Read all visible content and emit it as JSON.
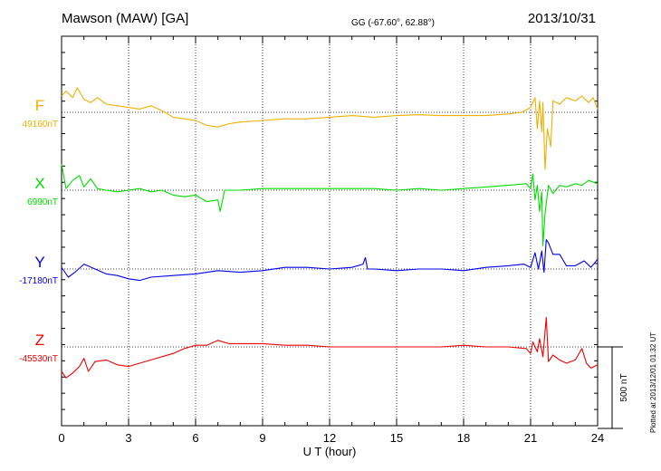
{
  "header": {
    "title": "Mawson (MAW)  [GA]",
    "coords": "GG (-67.60°,  62.88°)",
    "date": "2013/10/31"
  },
  "footer_note": "Plotted at 2013/12/01 01:32 UT",
  "chart_data": {
    "type": "line",
    "xlabel": "U T (hour)",
    "xlim": [
      0,
      24
    ],
    "x_ticks": [
      0,
      3,
      6,
      9,
      12,
      15,
      18,
      21,
      24
    ],
    "scale_bar": {
      "label": "500 nT",
      "value": 500
    },
    "grid": true,
    "series": [
      {
        "name": "F",
        "baseline_label": "49160nT",
        "baseline": 49160,
        "color": "#f0b000",
        "points": [
          [
            0,
            49260
          ],
          [
            0.2,
            49290
          ],
          [
            0.5,
            49250
          ],
          [
            0.7,
            49310
          ],
          [
            1,
            49240
          ],
          [
            1.3,
            49220
          ],
          [
            1.6,
            49250
          ],
          [
            2,
            49210
          ],
          [
            2.5,
            49200
          ],
          [
            3,
            49190
          ],
          [
            3.5,
            49180
          ],
          [
            4,
            49200
          ],
          [
            4.5,
            49170
          ],
          [
            5,
            49130
          ],
          [
            5.5,
            49120
          ],
          [
            6,
            49110
          ],
          [
            6.5,
            49080
          ],
          [
            7,
            49070
          ],
          [
            7.5,
            49090
          ],
          [
            8,
            49100
          ],
          [
            9,
            49110
          ],
          [
            10,
            49120
          ],
          [
            11,
            49120
          ],
          [
            12,
            49130
          ],
          [
            13,
            49140
          ],
          [
            14,
            49130
          ],
          [
            15,
            49140
          ],
          [
            16,
            49145
          ],
          [
            17,
            49140
          ],
          [
            18,
            49140
          ],
          [
            19,
            49140
          ],
          [
            20,
            49150
          ],
          [
            20.6,
            49160
          ],
          [
            21,
            49190
          ],
          [
            21.2,
            49250
          ],
          [
            21.3,
            49060
          ],
          [
            21.4,
            49230
          ],
          [
            21.5,
            49040
          ],
          [
            21.55,
            49220
          ],
          [
            21.65,
            48810
          ],
          [
            21.75,
            49060
          ],
          [
            21.9,
            48950
          ],
          [
            22,
            49230
          ],
          [
            22.3,
            49210
          ],
          [
            22.6,
            49250
          ],
          [
            23,
            49230
          ],
          [
            23.3,
            49260
          ],
          [
            23.6,
            49220
          ],
          [
            23.8,
            49250
          ],
          [
            24,
            49180
          ]
        ]
      },
      {
        "name": "X",
        "baseline_label": "6990nT",
        "baseline": 6990,
        "color": "#00dd00",
        "points": [
          [
            0,
            7150
          ],
          [
            0.2,
            7000
          ],
          [
            0.5,
            7050
          ],
          [
            0.8,
            7080
          ],
          [
            1,
            7010
          ],
          [
            1.3,
            7060
          ],
          [
            1.6,
            7000
          ],
          [
            2,
            6990
          ],
          [
            2.5,
            6980
          ],
          [
            3,
            6990
          ],
          [
            3.5,
            7000
          ],
          [
            4,
            6980
          ],
          [
            4.5,
            6990
          ],
          [
            5,
            6960
          ],
          [
            5.5,
            6950
          ],
          [
            6,
            6960
          ],
          [
            6.5,
            6920
          ],
          [
            7,
            6930
          ],
          [
            7.1,
            6860
          ],
          [
            7.3,
            6990
          ],
          [
            8,
            6990
          ],
          [
            9,
            7000
          ],
          [
            10,
            7000
          ],
          [
            11,
            7000
          ],
          [
            12,
            7000
          ],
          [
            13,
            7000
          ],
          [
            14,
            7000
          ],
          [
            15,
            6990
          ],
          [
            16,
            7000
          ],
          [
            17,
            6990
          ],
          [
            18,
            7000
          ],
          [
            19,
            7010
          ],
          [
            20,
            7020
          ],
          [
            20.8,
            7030
          ],
          [
            21,
            7000
          ],
          [
            21.1,
            7090
          ],
          [
            21.2,
            6930
          ],
          [
            21.3,
            7020
          ],
          [
            21.4,
            6860
          ],
          [
            21.5,
            6980
          ],
          [
            21.55,
            6650
          ],
          [
            21.65,
            6850
          ],
          [
            21.8,
            7020
          ],
          [
            22,
            6970
          ],
          [
            22.3,
            7020
          ],
          [
            22.6,
            7010
          ],
          [
            23,
            7030
          ],
          [
            23.3,
            7020
          ],
          [
            23.6,
            7050
          ],
          [
            24,
            7030
          ]
        ]
      },
      {
        "name": "Y",
        "baseline_label": "-17180nT",
        "baseline": -17180,
        "color": "#0000ee",
        "points": [
          [
            0,
            -17170
          ],
          [
            0.3,
            -17230
          ],
          [
            0.6,
            -17200
          ],
          [
            1,
            -17150
          ],
          [
            1.5,
            -17180
          ],
          [
            2,
            -17210
          ],
          [
            2.5,
            -17220
          ],
          [
            3,
            -17240
          ],
          [
            3.5,
            -17250
          ],
          [
            4,
            -17230
          ],
          [
            5,
            -17220
          ],
          [
            6,
            -17210
          ],
          [
            7,
            -17190
          ],
          [
            8,
            -17200
          ],
          [
            9,
            -17190
          ],
          [
            10,
            -17170
          ],
          [
            11,
            -17170
          ],
          [
            12,
            -17180
          ],
          [
            13,
            -17170
          ],
          [
            13.5,
            -17150
          ],
          [
            13.6,
            -17110
          ],
          [
            13.7,
            -17180
          ],
          [
            14,
            -17180
          ],
          [
            15,
            -17190
          ],
          [
            16,
            -17180
          ],
          [
            17,
            -17180
          ],
          [
            18,
            -17190
          ],
          [
            19,
            -17170
          ],
          [
            20,
            -17160
          ],
          [
            20.7,
            -17150
          ],
          [
            21,
            -17170
          ],
          [
            21.2,
            -17080
          ],
          [
            21.35,
            -17180
          ],
          [
            21.5,
            -17070
          ],
          [
            21.6,
            -17200
          ],
          [
            21.7,
            -17000
          ],
          [
            21.8,
            -17020
          ],
          [
            22,
            -17090
          ],
          [
            22.3,
            -17090
          ],
          [
            22.6,
            -17160
          ],
          [
            23,
            -17160
          ],
          [
            23.4,
            -17130
          ],
          [
            23.7,
            -17170
          ],
          [
            24,
            -17120
          ]
        ]
      },
      {
        "name": "Z",
        "baseline_label": "-45530nT",
        "baseline": -45530,
        "color": "#ee0000",
        "points": [
          [
            0,
            -45680
          ],
          [
            0.2,
            -45720
          ],
          [
            0.5,
            -45690
          ],
          [
            0.8,
            -45650
          ],
          [
            1,
            -45600
          ],
          [
            1.2,
            -45680
          ],
          [
            1.5,
            -45620
          ],
          [
            2,
            -45610
          ],
          [
            2.5,
            -45640
          ],
          [
            3,
            -45650
          ],
          [
            4,
            -45610
          ],
          [
            5,
            -45570
          ],
          [
            5.5,
            -45540
          ],
          [
            6,
            -45520
          ],
          [
            6.5,
            -45520
          ],
          [
            7,
            -45490
          ],
          [
            7.5,
            -45510
          ],
          [
            8,
            -45510
          ],
          [
            9,
            -45510
          ],
          [
            10,
            -45520
          ],
          [
            11,
            -45520
          ],
          [
            12,
            -45530
          ],
          [
            13,
            -45530
          ],
          [
            14,
            -45530
          ],
          [
            15,
            -45530
          ],
          [
            16,
            -45530
          ],
          [
            17,
            -45530
          ],
          [
            18,
            -45520
          ],
          [
            19,
            -45530
          ],
          [
            20,
            -45530
          ],
          [
            20.8,
            -45540
          ],
          [
            21,
            -45570
          ],
          [
            21.1,
            -45500
          ],
          [
            21.3,
            -45560
          ],
          [
            21.4,
            -45480
          ],
          [
            21.55,
            -45590
          ],
          [
            21.7,
            -45350
          ],
          [
            21.8,
            -45620
          ],
          [
            22,
            -45580
          ],
          [
            22.3,
            -45610
          ],
          [
            22.6,
            -45630
          ],
          [
            23,
            -45610
          ],
          [
            23.3,
            -45540
          ],
          [
            23.5,
            -45630
          ],
          [
            23.7,
            -45660
          ],
          [
            24,
            -45640
          ]
        ]
      }
    ]
  }
}
